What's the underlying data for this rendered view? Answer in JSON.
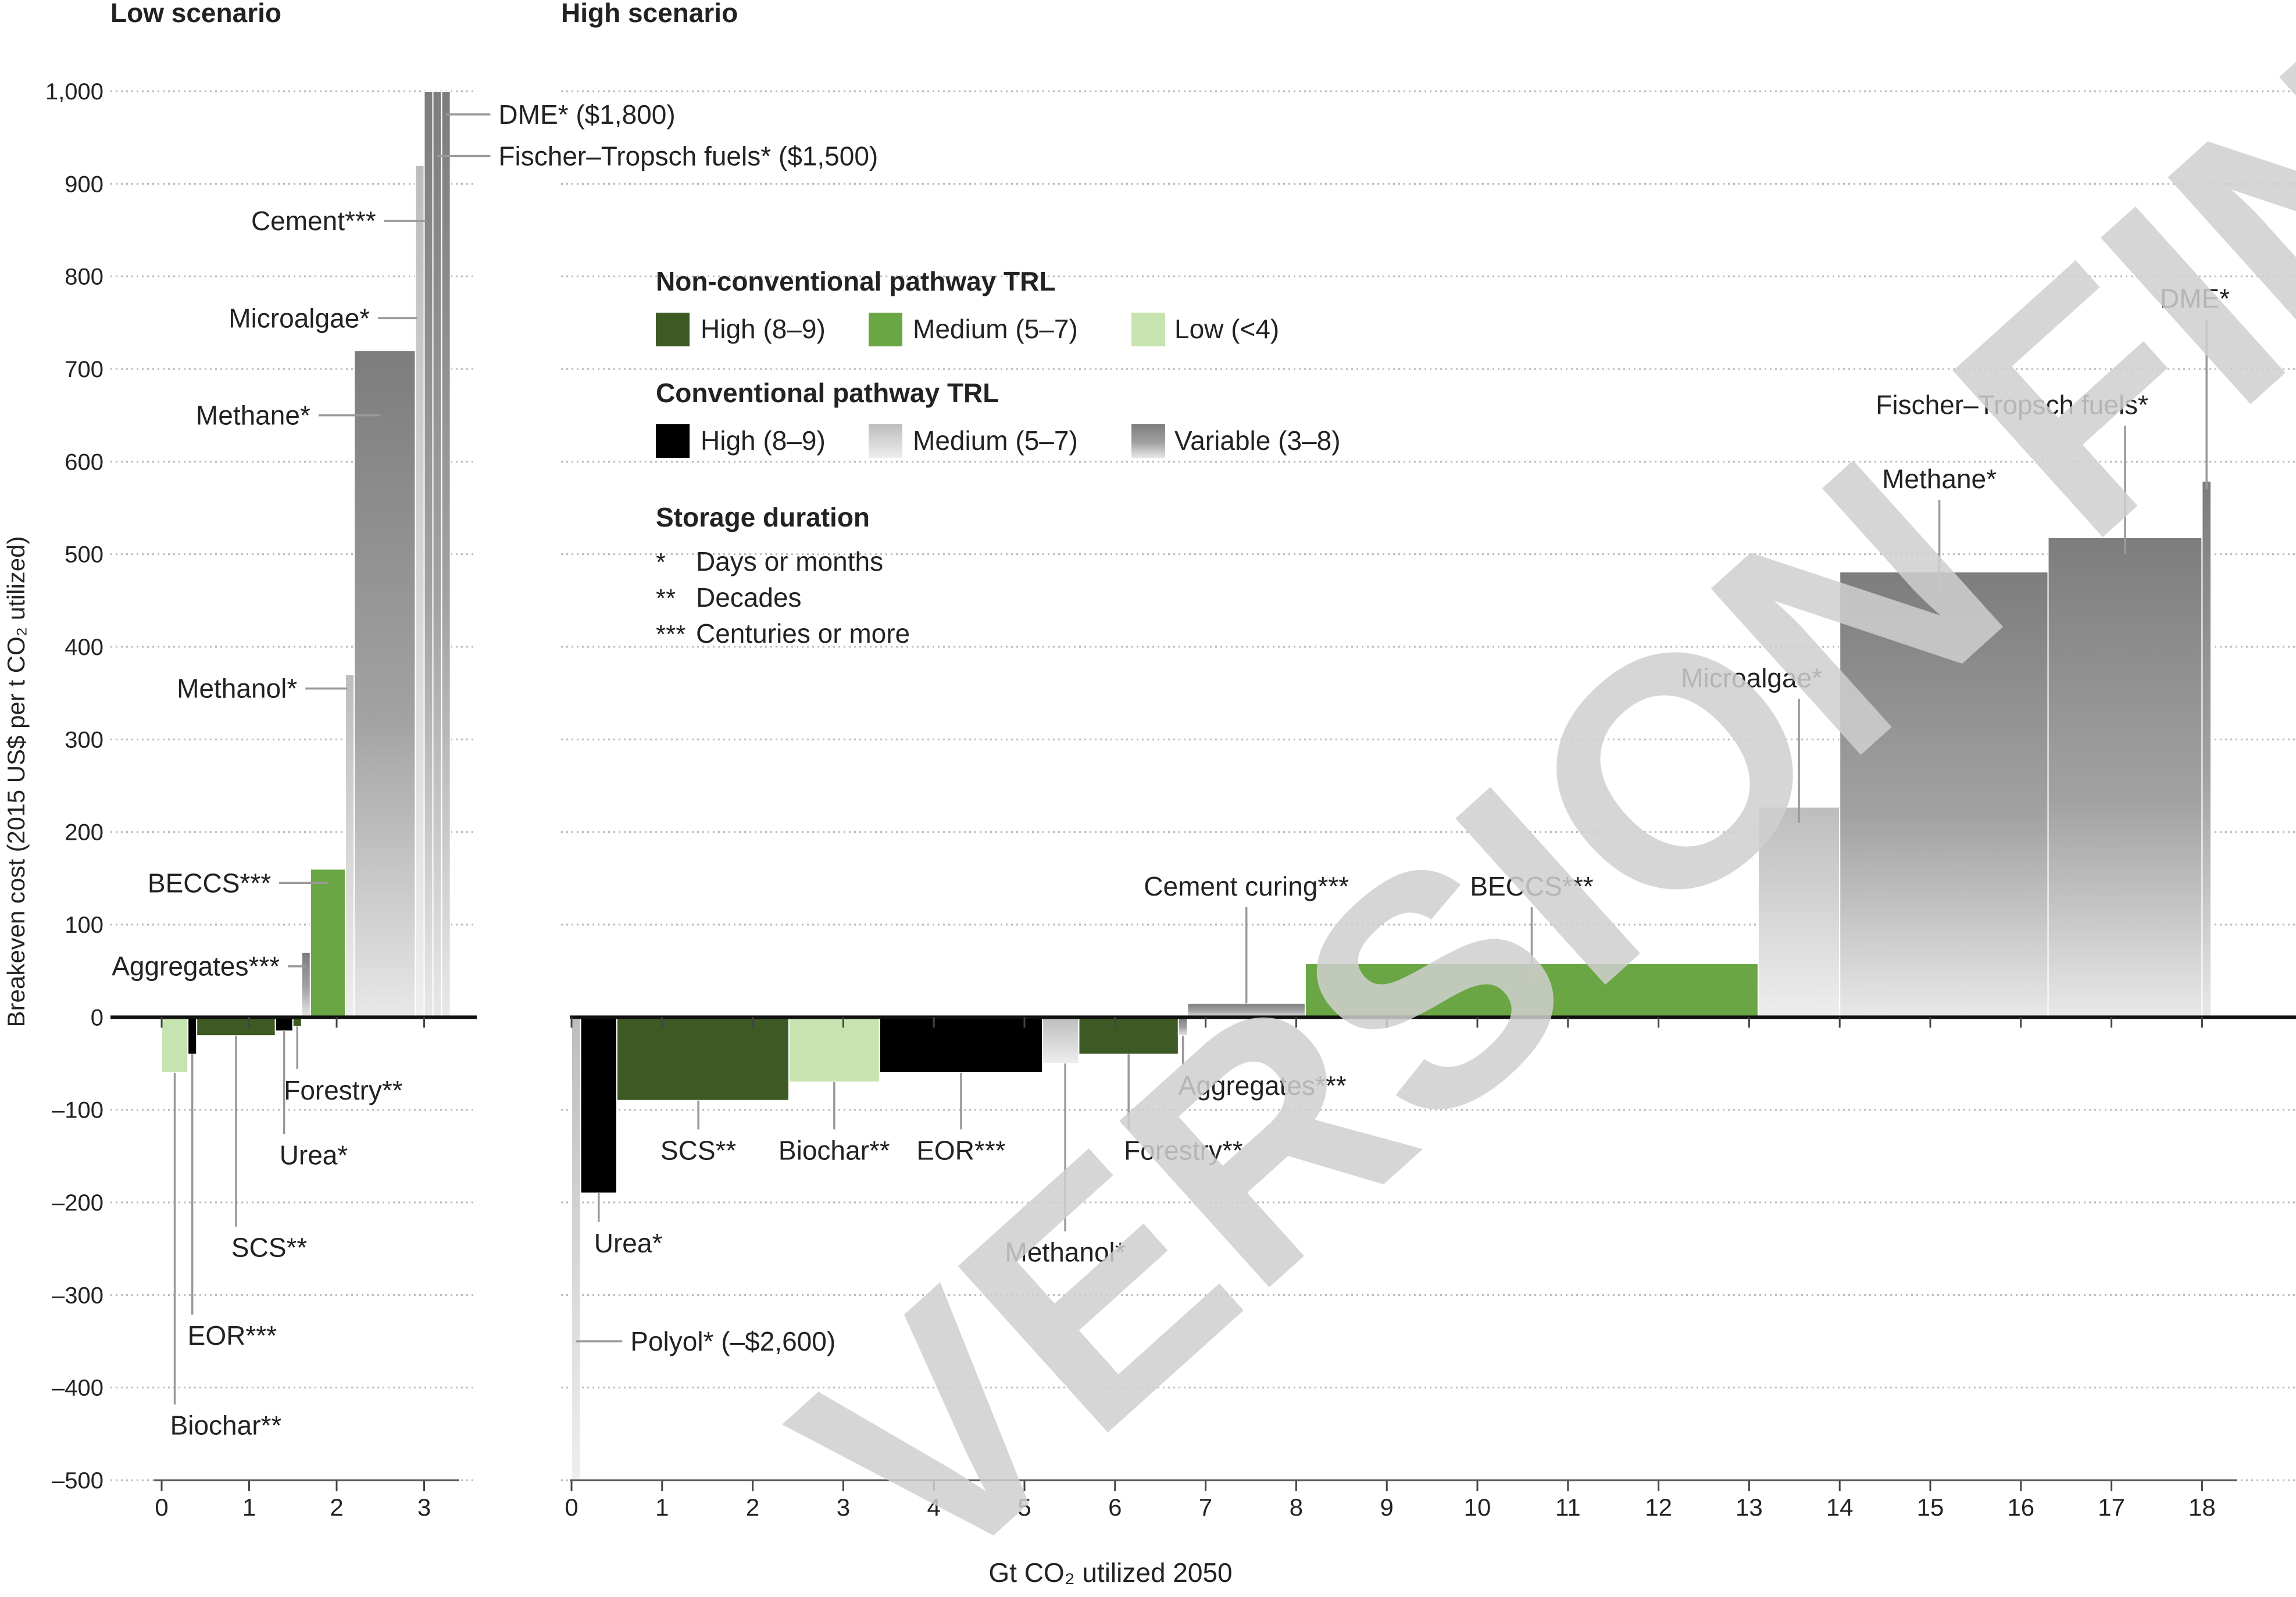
{
  "panels": {
    "low": {
      "title": "Low scenario"
    },
    "high": {
      "title": "High scenario"
    }
  },
  "legend": {
    "nonconv_title": "Non-conventional pathway TRL",
    "nonconv": [
      {
        "label": "High (8–9)",
        "color": "#3d5a24"
      },
      {
        "label": "Medium (5–7)",
        "color": "#6aa744"
      },
      {
        "label": "Low (<4)",
        "color": "#c6e3b0"
      }
    ],
    "conv_title": "Conventional pathway TRL",
    "conv": [
      {
        "label": "High (8–9)",
        "color": "#000000"
      },
      {
        "label": "Medium (5–7)",
        "color": "#c4c4c4"
      },
      {
        "label": "Variable (3–8)",
        "color": "#8a8a8a"
      }
    ],
    "storage_title": "Storage duration",
    "storage": [
      {
        "mark": "*",
        "label": "Days or months"
      },
      {
        "mark": "**",
        "label": "Decades"
      },
      {
        "mark": "***",
        "label": "Centuries or more"
      }
    ]
  },
  "watermark": {
    "text": "VERSION FINAL ED"
  },
  "chart_data": [
    {
      "type": "bar",
      "title": "Low scenario",
      "xlabel": "",
      "ylabel": "Breakeven cost (2015 US$ per t CO₂ utilized)",
      "xlim": [
        -0.15,
        3.5
      ],
      "ylim": [
        -500,
        1000
      ],
      "xticks": [
        "0",
        "1",
        "2",
        "3"
      ],
      "yticks": [
        "–500",
        "–400",
        "–300",
        "–200",
        "–100",
        "0",
        "100",
        "200",
        "300",
        "400",
        "500",
        "600",
        "700",
        "800",
        "900",
        "1,000"
      ],
      "grid": true,
      "bars": [
        {
          "name": "Biochar**",
          "x0": 0.0,
          "x1": 0.3,
          "y": -60,
          "color": "#c6e3b0"
        },
        {
          "name": "EOR***",
          "x0": 0.3,
          "x1": 0.4,
          "y": -40,
          "color": "#000000"
        },
        {
          "name": "SCS**",
          "x0": 0.4,
          "x1": 1.3,
          "y": -20,
          "color": "#3d5a24"
        },
        {
          "name": "Urea*",
          "x0": 1.3,
          "x1": 1.5,
          "y": -15,
          "color": "#000000"
        },
        {
          "name": "Forestry**",
          "x0": 1.5,
          "x1": 1.6,
          "y": -10,
          "color": "#3d5a24"
        },
        {
          "name": "Aggregates***",
          "x0": 1.6,
          "x1": 1.7,
          "y": 70,
          "color": "#8a8a8a"
        },
        {
          "name": "BECCS***",
          "x0": 1.7,
          "x1": 2.1,
          "y": 160,
          "color": "#6aa744"
        },
        {
          "name": "Methanol*",
          "x0": 2.1,
          "x1": 2.2,
          "y": 370,
          "color": "#c4c4c4"
        },
        {
          "name": "Methane*",
          "x0": 2.2,
          "x1": 2.9,
          "y": 720,
          "color": "#8a8a8a"
        },
        {
          "name": "Microalgae*",
          "x0": 2.9,
          "x1": 3.0,
          "y": 920,
          "color": "#c4c4c4"
        },
        {
          "name": "Cement***",
          "x0": 3.0,
          "x1": 3.1,
          "y": 1000,
          "color": "#8a8a8a"
        },
        {
          "name": "Fischer–Tropsch fuels*",
          "x0": 3.1,
          "x1": 3.2,
          "y": 1000,
          "color": "#8a8a8a"
        },
        {
          "name": "DME*",
          "x0": 3.2,
          "x1": 3.3,
          "y": 1000,
          "color": "#8a8a8a"
        }
      ],
      "annotations": [
        {
          "text": "DME* ($1,800)",
          "anchor_x": 3.25,
          "anchor_y": 975,
          "label_x": 3.85,
          "label_y": 975,
          "align": "start"
        },
        {
          "text": "Fischer–Tropsch fuels* ($1,500)",
          "anchor_x": 3.15,
          "anchor_y": 930,
          "label_x": 3.85,
          "label_y": 930,
          "align": "start"
        },
        {
          "text": "Cement***",
          "anchor_x": 3.02,
          "anchor_y": 860,
          "label_x": 2.45,
          "label_y": 860,
          "align": "end"
        },
        {
          "text": "Microalgae*",
          "anchor_x": 2.92,
          "anchor_y": 755,
          "label_x": 2.38,
          "label_y": 755,
          "align": "end"
        },
        {
          "text": "Methane*",
          "anchor_x": 2.5,
          "anchor_y": 650,
          "label_x": 1.7,
          "label_y": 650,
          "align": "end"
        },
        {
          "text": "Methanol*",
          "anchor_x": 2.12,
          "anchor_y": 355,
          "label_x": 1.55,
          "label_y": 355,
          "align": "end"
        },
        {
          "text": "BECCS***",
          "anchor_x": 1.9,
          "anchor_y": 145,
          "label_x": 1.25,
          "label_y": 145,
          "align": "end"
        },
        {
          "text": "Aggregates***",
          "anchor_x": 1.65,
          "anchor_y": 55,
          "label_x": 1.35,
          "label_y": 55,
          "align": "end"
        },
        {
          "text": "Forestry**",
          "anchor_x": 1.55,
          "anchor_y": -10,
          "label_x": 1.45,
          "label_y": -70,
          "align": "start",
          "vertical": true
        },
        {
          "text": "Urea*",
          "anchor_x": 1.4,
          "anchor_y": -15,
          "label_x": 1.4,
          "label_y": -140,
          "align": "start",
          "vertical": true
        },
        {
          "text": "SCS**",
          "anchor_x": 0.85,
          "anchor_y": -20,
          "label_x": 0.85,
          "label_y": -240,
          "align": "start",
          "vertical": true
        },
        {
          "text": "EOR***",
          "anchor_x": 0.35,
          "anchor_y": -40,
          "label_x": 0.35,
          "label_y": -335,
          "align": "start",
          "vertical": true
        },
        {
          "text": "Biochar**",
          "anchor_x": 0.15,
          "anchor_y": -60,
          "label_x": 0.15,
          "label_y": -432,
          "align": "start",
          "vertical": true
        }
      ]
    },
    {
      "type": "bar",
      "title": "High scenario",
      "xlabel": "Gt CO₂ utilized 2050",
      "ylabel": "",
      "xlim": [
        -0.05,
        19
      ],
      "ylim": [
        -500,
        1000
      ],
      "xticks": [
        "0",
        "1",
        "2",
        "3",
        "4",
        "5",
        "6",
        "7",
        "8",
        "9",
        "10",
        "11",
        "12",
        "13",
        "14",
        "15",
        "16",
        "17",
        "18"
      ],
      "grid": true,
      "bars": [
        {
          "name": "Polyol*",
          "x0": 0.0,
          "x1": 0.1,
          "y": -500,
          "color": "#c4c4c4"
        },
        {
          "name": "Urea*",
          "x0": 0.1,
          "x1": 0.5,
          "y": -190,
          "color": "#000000"
        },
        {
          "name": "SCS**",
          "x0": 0.5,
          "x1": 2.4,
          "y": -90,
          "color": "#3d5a24"
        },
        {
          "name": "Biochar**",
          "x0": 2.4,
          "x1": 3.4,
          "y": -70,
          "color": "#c6e3b0"
        },
        {
          "name": "EOR***",
          "x0": 3.4,
          "x1": 5.2,
          "y": -60,
          "color": "#000000"
        },
        {
          "name": "Methanol*",
          "x0": 5.2,
          "x1": 5.6,
          "y": -50,
          "color": "#c4c4c4"
        },
        {
          "name": "Forestry**",
          "x0": 5.6,
          "x1": 6.7,
          "y": -40,
          "color": "#3d5a24"
        },
        {
          "name": "Aggregates***",
          "x0": 6.7,
          "x1": 6.8,
          "y": -20,
          "color": "#8a8a8a"
        },
        {
          "name": "Cement curing***",
          "x0": 6.8,
          "x1": 8.1,
          "y": 15,
          "color": "#8a8a8a"
        },
        {
          "name": "BECCS***",
          "x0": 8.1,
          "x1": 13.1,
          "y": 58,
          "color": "#6aa744"
        },
        {
          "name": "Microalgae*",
          "x0": 13.1,
          "x1": 14.0,
          "y": 227,
          "color": "#c4c4c4"
        },
        {
          "name": "Methane*",
          "x0": 14.0,
          "x1": 16.3,
          "y": 481,
          "color": "#8a8a8a"
        },
        {
          "name": "Fischer–Tropsch fuels*",
          "x0": 16.3,
          "x1": 18.0,
          "y": 518,
          "color": "#8a8a8a"
        },
        {
          "name": "DME*",
          "x0": 18.0,
          "x1": 18.1,
          "y": 579,
          "color": "#8a8a8a"
        }
      ],
      "annotations": [
        {
          "text": "Polyol* (–$2,600)",
          "anchor_x": 0.05,
          "anchor_y": -350,
          "label_x": 0.65,
          "label_y": -350,
          "align": "start"
        },
        {
          "text": "Urea*",
          "anchor_x": 0.3,
          "anchor_y": -190,
          "label_x": 0.3,
          "label_y": -235,
          "align": "start",
          "vertical": true
        },
        {
          "text": "SCS**",
          "anchor_x": 1.4,
          "anchor_y": -90,
          "label_x": 1.4,
          "label_y": -135,
          "align": "middle",
          "vertical": true
        },
        {
          "text": "Biochar**",
          "anchor_x": 2.9,
          "anchor_y": -70,
          "label_x": 2.9,
          "label_y": -135,
          "align": "middle",
          "vertical": true
        },
        {
          "text": "EOR***",
          "anchor_x": 4.3,
          "anchor_y": -60,
          "label_x": 4.3,
          "label_y": -135,
          "align": "middle",
          "vertical": true
        },
        {
          "text": "Methanol*",
          "anchor_x": 5.45,
          "anchor_y": -50,
          "label_x": 5.45,
          "label_y": -245,
          "align": "middle",
          "vertical": true
        },
        {
          "text": "Forestry**",
          "anchor_x": 6.15,
          "anchor_y": -40,
          "label_x": 6.15,
          "label_y": -135,
          "align": "start",
          "vertical": true
        },
        {
          "text": "Aggregates***",
          "anchor_x": 6.75,
          "anchor_y": -20,
          "label_x": 6.75,
          "label_y": -65,
          "align": "start",
          "vertical": true
        },
        {
          "text": "Cement curing***",
          "anchor_x": 7.45,
          "anchor_y": 15,
          "label_x": 7.45,
          "label_y": 120,
          "align": "middle",
          "vertical": true
        },
        {
          "text": "BECCS***",
          "anchor_x": 10.6,
          "anchor_y": 40,
          "label_x": 10.6,
          "label_y": 120,
          "align": "middle",
          "vertical": true
        },
        {
          "text": "Microalgae*",
          "anchor_x": 13.55,
          "anchor_y": 210,
          "label_x": 13.55,
          "label_y": 345,
          "align": "end",
          "vertical": true
        },
        {
          "text": "Methane*",
          "anchor_x": 15.1,
          "anchor_y": 460,
          "label_x": 15.1,
          "label_y": 560,
          "align": "middle",
          "vertical": true
        },
        {
          "text": "Fischer–Tropsch fuels*",
          "anchor_x": 17.15,
          "anchor_y": 500,
          "label_x": 17.15,
          "label_y": 640,
          "align": "end",
          "vertical": true
        },
        {
          "text": "DME*",
          "anchor_x": 18.05,
          "anchor_y": 570,
          "label_x": 18.05,
          "label_y": 755,
          "align": "end",
          "vertical": true
        }
      ]
    }
  ]
}
